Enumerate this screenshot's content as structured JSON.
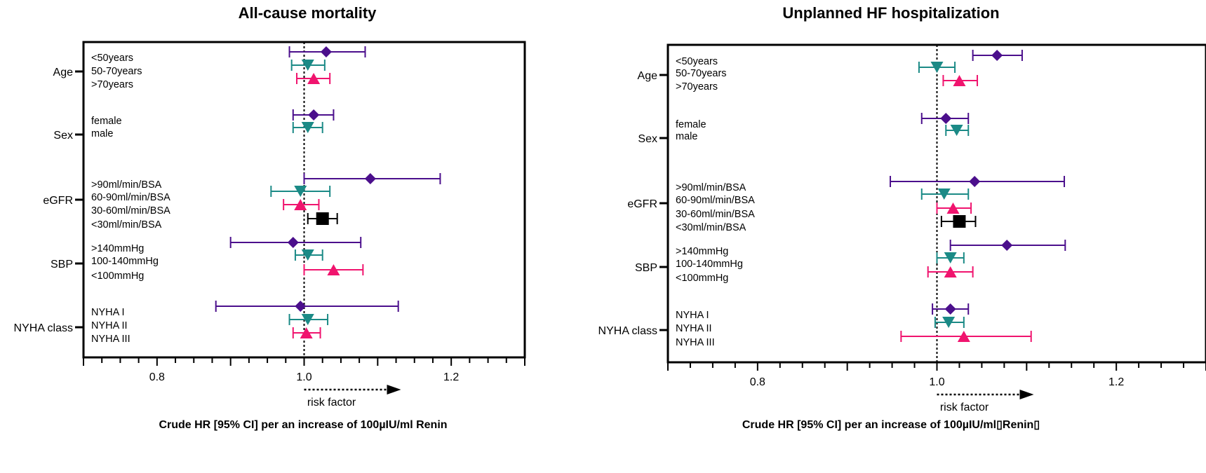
{
  "chart_data": [
    {
      "type": "forest",
      "title": "All-cause mortality",
      "xlabel": "Crude HR [95% CI] per an increase of 100µIU/ml Renin",
      "xlim": [
        0.7,
        1.3
      ],
      "xticks": [
        0.8,
        1.0,
        1.2
      ],
      "xtick_labels": [
        "0.8",
        "1.0",
        "1.2"
      ],
      "reference_line": 1.0,
      "arrow_label": "risk factor",
      "groups": [
        {
          "label": "Age",
          "subgroups": [
            {
              "label": "<50years",
              "hr": 1.03,
              "lo": 0.98,
              "hi": 1.083,
              "color": "#4b0f8c",
              "marker": "diamond"
            },
            {
              "label": "50-70years",
              "hr": 1.005,
              "lo": 0.983,
              "hi": 1.028,
              "color": "#1b8a86",
              "marker": "triangle-down"
            },
            {
              "label": ">70years",
              "hr": 1.013,
              "lo": 0.99,
              "hi": 1.035,
              "color": "#f0146e",
              "marker": "triangle-up"
            }
          ]
        },
        {
          "label": "Sex",
          "subgroups": [
            {
              "label": "female",
              "hr": 1.013,
              "lo": 0.985,
              "hi": 1.04,
              "color": "#4b0f8c",
              "marker": "diamond"
            },
            {
              "label": "male",
              "hr": 1.005,
              "lo": 0.985,
              "hi": 1.025,
              "color": "#1b8a86",
              "marker": "triangle-down"
            }
          ]
        },
        {
          "label": "eGFR",
          "subgroups": [
            {
              "label": ">90ml/min/BSA",
              "hr": 1.09,
              "lo": 1.0,
              "hi": 1.185,
              "color": "#4b0f8c",
              "marker": "diamond"
            },
            {
              "label": "60-90ml/min/BSA",
              "hr": 0.995,
              "lo": 0.955,
              "hi": 1.035,
              "color": "#1b8a86",
              "marker": "triangle-down"
            },
            {
              "label": "30-60ml/min/BSA",
              "hr": 0.995,
              "lo": 0.972,
              "hi": 1.02,
              "color": "#f0146e",
              "marker": "triangle-up"
            },
            {
              "label": "<30ml/min/BSA",
              "hr": 1.025,
              "lo": 1.005,
              "hi": 1.045,
              "color": "#000000",
              "marker": "square"
            }
          ]
        },
        {
          "label": "SBP",
          "subgroups": [
            {
              "label": ">140mmHg",
              "hr": 0.985,
              "lo": 0.9,
              "hi": 1.077,
              "color": "#4b0f8c",
              "marker": "diamond"
            },
            {
              "label": "100-140mmHg",
              "hr": 1.005,
              "lo": 0.988,
              "hi": 1.025,
              "color": "#1b8a86",
              "marker": "triangle-down"
            },
            {
              "label": "<100mmHg",
              "hr": 1.04,
              "lo": 1.0,
              "hi": 1.08,
              "color": "#f0146e",
              "marker": "triangle-up"
            }
          ]
        },
        {
          "label": "NYHA class",
          "subgroups": [
            {
              "label": "NYHA I",
              "hr": 0.995,
              "lo": 0.88,
              "hi": 1.128,
              "color": "#4b0f8c",
              "marker": "diamond"
            },
            {
              "label": "NYHA II",
              "hr": 1.005,
              "lo": 0.98,
              "hi": 1.032,
              "color": "#1b8a86",
              "marker": "triangle-down"
            },
            {
              "label": "NYHA III",
              "hr": 1.003,
              "lo": 0.985,
              "hi": 1.022,
              "color": "#f0146e",
              "marker": "triangle-up"
            }
          ]
        }
      ]
    },
    {
      "type": "forest",
      "title": "Unplanned HF hospitalization",
      "xlabel": "Crude HR [95% CI] per an increase of 100µIU/ml▯Renin▯",
      "xlim": [
        0.7,
        1.3
      ],
      "xticks": [
        0.8,
        1.0,
        1.2
      ],
      "xtick_labels": [
        "0.8",
        "1.0",
        "1.2"
      ],
      "reference_line": 1.0,
      "arrow_label": "risk factor",
      "groups": [
        {
          "label": "Age",
          "subgroups": [
            {
              "label": "<50years",
              "hr": 1.067,
              "lo": 1.04,
              "hi": 1.095,
              "color": "#4b0f8c",
              "marker": "diamond"
            },
            {
              "label": "50-70years",
              "hr": 1.0,
              "lo": 0.98,
              "hi": 1.02,
              "color": "#1b8a86",
              "marker": "triangle-down"
            },
            {
              "label": ">70years",
              "hr": 1.025,
              "lo": 1.007,
              "hi": 1.045,
              "color": "#f0146e",
              "marker": "triangle-up"
            }
          ]
        },
        {
          "label": "Sex",
          "subgroups": [
            {
              "label": "female",
              "hr": 1.01,
              "lo": 0.983,
              "hi": 1.035,
              "color": "#4b0f8c",
              "marker": "diamond"
            },
            {
              "label": "male",
              "hr": 1.022,
              "lo": 1.01,
              "hi": 1.035,
              "color": "#1b8a86",
              "marker": "triangle-down"
            }
          ]
        },
        {
          "label": "eGFR",
          "subgroups": [
            {
              "label": ">90ml/min/BSA",
              "hr": 1.042,
              "lo": 0.948,
              "hi": 1.142,
              "color": "#4b0f8c",
              "marker": "diamond"
            },
            {
              "label": "60-90ml/min/BSA",
              "hr": 1.008,
              "lo": 0.983,
              "hi": 1.035,
              "color": "#1b8a86",
              "marker": "triangle-down"
            },
            {
              "label": "30-60ml/min/BSA",
              "hr": 1.018,
              "lo": 1.0,
              "hi": 1.038,
              "color": "#f0146e",
              "marker": "triangle-up"
            },
            {
              "label": "<30ml/min/BSA",
              "hr": 1.025,
              "lo": 1.005,
              "hi": 1.043,
              "color": "#000000",
              "marker": "square"
            }
          ]
        },
        {
          "label": "SBP",
          "subgroups": [
            {
              "label": ">140mmHg",
              "hr": 1.078,
              "lo": 1.015,
              "hi": 1.143,
              "color": "#4b0f8c",
              "marker": "diamond"
            },
            {
              "label": "100-140mmHg",
              "hr": 1.015,
              "lo": 1.0,
              "hi": 1.03,
              "color": "#1b8a86",
              "marker": "triangle-down"
            },
            {
              "label": "<100mmHg",
              "hr": 1.015,
              "lo": 0.99,
              "hi": 1.04,
              "color": "#f0146e",
              "marker": "triangle-up"
            }
          ]
        },
        {
          "label": "NYHA class",
          "subgroups": [
            {
              "label": "NYHA I",
              "hr": 1.015,
              "lo": 0.995,
              "hi": 1.035,
              "color": "#4b0f8c",
              "marker": "diamond"
            },
            {
              "label": "NYHA II",
              "hr": 1.013,
              "lo": 0.998,
              "hi": 1.03,
              "color": "#1b8a86",
              "marker": "triangle-down"
            },
            {
              "label": "NYHA III",
              "hr": 1.03,
              "lo": 0.96,
              "hi": 1.105,
              "color": "#f0146e",
              "marker": "triangle-up"
            }
          ]
        }
      ]
    }
  ]
}
